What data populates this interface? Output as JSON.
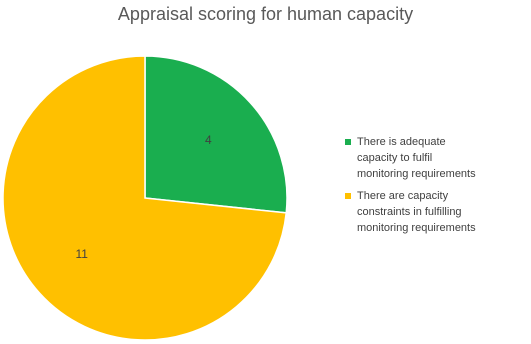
{
  "chart_data": {
    "type": "pie",
    "title": "Appraisal scoring for human capacity",
    "slices": [
      {
        "label": "There is adequate\ncapacity to fulfil\nmonitoring requirements",
        "value": 4,
        "color": "#1aae4f"
      },
      {
        "label": "There are capacity\nconstraints in fulfilling\nmonitoring requirements",
        "value": 11,
        "color": "#ffc000"
      }
    ],
    "legend_position": "right"
  }
}
